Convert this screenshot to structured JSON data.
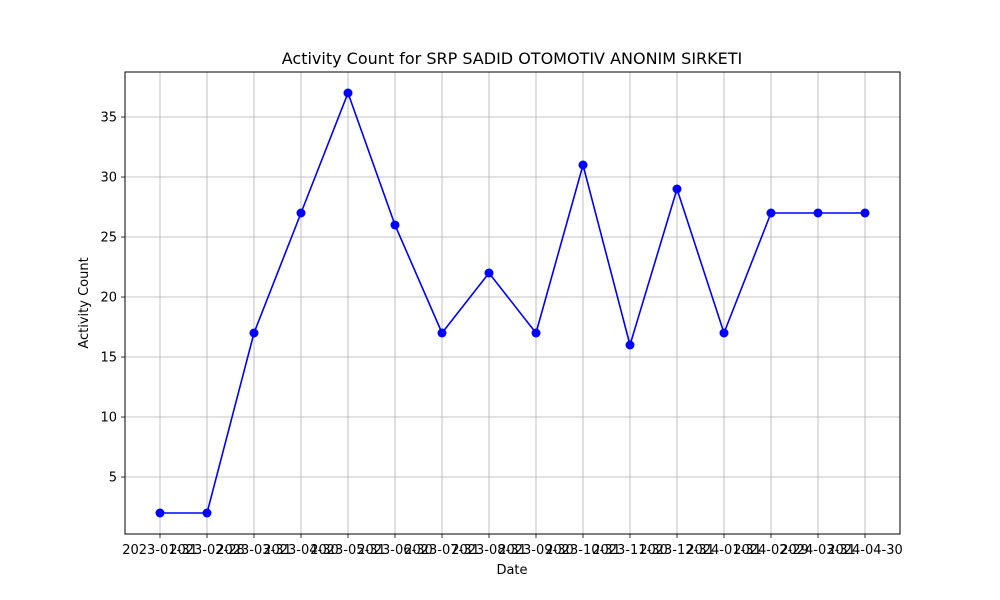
{
  "chart_data": {
    "type": "line",
    "title": "Activity Count for SRP SADID OTOMOTIV ANONIM SIRKETI",
    "xlabel": "Date",
    "ylabel": "Activity Count",
    "x": [
      "2023-01-31",
      "2023-02-28",
      "2023-03-31",
      "2023-04-30",
      "2023-05-31",
      "2023-06-30",
      "2023-07-31",
      "2023-08-31",
      "2023-09-30",
      "2023-10-31",
      "2023-11-30",
      "2023-12-31",
      "2024-01-31",
      "2024-02-29",
      "2024-03-31",
      "2024-04-30"
    ],
    "series": [
      {
        "values": [
          2,
          2,
          17,
          27,
          37,
          26,
          17,
          22,
          17,
          31,
          16,
          29,
          17,
          27,
          27,
          27
        ]
      }
    ],
    "yticks": [
      5,
      10,
      15,
      20,
      25,
      30,
      35
    ],
    "ylim": [
      0.25,
      38.75
    ],
    "grid": true,
    "marker": "circle",
    "line_color": "#0000ff"
  }
}
